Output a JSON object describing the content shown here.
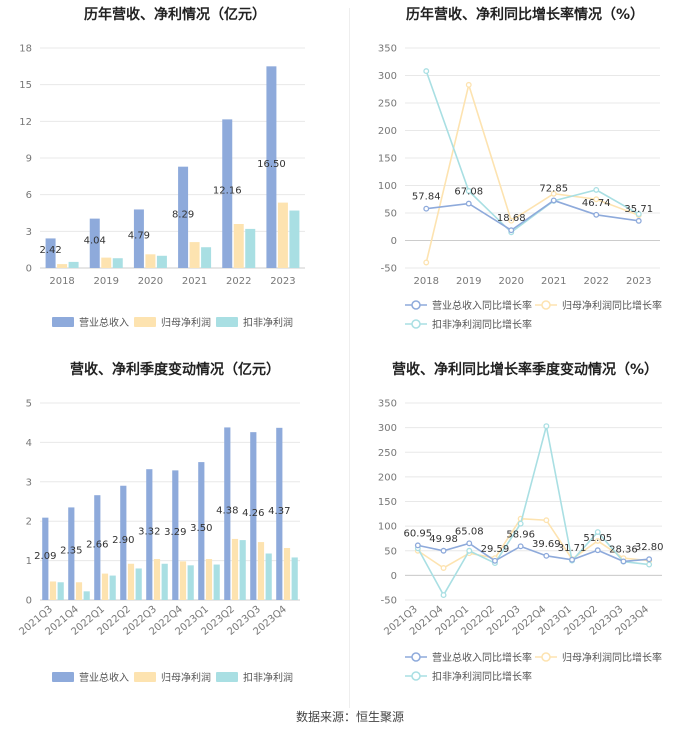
{
  "footer": {
    "source": "数据来源：恒生聚源"
  },
  "colors": {
    "revenue": "#8eaadb",
    "net_profit": "#fde3b0",
    "deducted": "#a9dfe3",
    "grid": "#e8e8e8",
    "axis": "#cccccc"
  },
  "chart_data": [
    {
      "id": "annual-values",
      "type": "bar",
      "title": "历年营收、净利情况（亿元）",
      "categories": [
        "2018",
        "2019",
        "2020",
        "2021",
        "2022",
        "2023"
      ],
      "series": [
        {
          "name": "营业总收入",
          "values": [
            2.42,
            4.04,
            4.79,
            8.29,
            12.16,
            16.5
          ],
          "labels": [
            "2.42",
            "4.04",
            "4.79",
            "8.29",
            "12.16",
            "16.50"
          ]
        },
        {
          "name": "归母净利润",
          "values": [
            0.32,
            0.85,
            1.12,
            2.12,
            3.6,
            5.35
          ]
        },
        {
          "name": "扣非净利润",
          "values": [
            0.5,
            0.8,
            1.0,
            1.7,
            3.2,
            4.7
          ]
        }
      ],
      "ylim": [
        0,
        18
      ],
      "yticks": [
        0,
        3,
        6,
        9,
        12,
        15,
        18
      ],
      "ytick_labels": [
        "0",
        "3",
        "6",
        "9",
        "12",
        "15",
        "18"
      ]
    },
    {
      "id": "annual-growth",
      "type": "line",
      "title": "历年营收、净利同比增长率情况（%）",
      "categories": [
        "2018",
        "2019",
        "2020",
        "2021",
        "2022",
        "2023"
      ],
      "series": [
        {
          "name": "营业总收入同比增长率",
          "values": [
            57.84,
            67.08,
            18.68,
            72.85,
            46.74,
            35.71
          ],
          "labels": [
            "57.84",
            "67.08",
            "18.68",
            "72.85",
            "46.74",
            "35.71"
          ]
        },
        {
          "name": "归母净利润同比增长率",
          "values": [
            -40,
            283,
            36,
            85,
            75,
            46
          ]
        },
        {
          "name": "扣非净利润同比增长率",
          "values": [
            308,
            90,
            15,
            72,
            92,
            48
          ]
        }
      ],
      "ylim": [
        -50,
        350
      ],
      "yticks": [
        -50,
        0,
        50,
        100,
        150,
        200,
        250,
        300,
        350
      ],
      "ytick_labels": [
        "-50",
        "0",
        "50",
        "100",
        "150",
        "200",
        "250",
        "300",
        "350"
      ]
    },
    {
      "id": "quarterly-values",
      "type": "bar",
      "title": "营收、净利季度变动情况（亿元）",
      "categories": [
        "2021Q3",
        "2021Q4",
        "2022Q1",
        "2022Q2",
        "2022Q3",
        "2022Q4",
        "2023Q1",
        "2023Q2",
        "2023Q3",
        "2023Q4"
      ],
      "series": [
        {
          "name": "营业总收入",
          "values": [
            2.09,
            2.35,
            2.66,
            2.9,
            3.32,
            3.29,
            3.5,
            4.38,
            4.26,
            4.37
          ],
          "labels": [
            "2.09",
            "2.35",
            "2.66",
            "2.90",
            "3.32",
            "3.29",
            "3.50",
            "4.38",
            "4.26",
            "4.37"
          ]
        },
        {
          "name": "归母净利润",
          "values": [
            0.47,
            0.45,
            0.67,
            0.92,
            1.04,
            0.98,
            1.04,
            1.55,
            1.47,
            1.32
          ]
        },
        {
          "name": "扣非净利润",
          "values": [
            0.45,
            0.22,
            0.62,
            0.8,
            0.92,
            0.88,
            0.9,
            1.52,
            1.18,
            1.08
          ]
        }
      ],
      "ylim": [
        0,
        5
      ],
      "yticks": [
        0,
        1,
        2,
        3,
        4,
        5
      ],
      "ytick_labels": [
        "0",
        "1",
        "2",
        "3",
        "4",
        "5"
      ]
    },
    {
      "id": "quarterly-growth",
      "type": "line",
      "title": "营收、净利同比增长率季度变动情况（%）",
      "categories": [
        "2021Q3",
        "2021Q4",
        "2022Q1",
        "2022Q2",
        "2022Q3",
        "2022Q4",
        "2023Q1",
        "2023Q2",
        "2023Q3",
        "2023Q4"
      ],
      "series": [
        {
          "name": "营业总收入同比增长率",
          "values": [
            60.95,
            49.98,
            65.08,
            29.59,
            58.96,
            39.69,
            31.71,
            51.05,
            28.36,
            32.8
          ],
          "labels": [
            "60.95",
            "49.98",
            "65.08",
            "29.59",
            "58.96",
            "39.69",
            "31.71",
            "51.05",
            "28.36",
            "32.80"
          ]
        },
        {
          "name": "归母净利润同比增长率",
          "values": [
            50,
            15,
            45,
            35,
            115,
            112,
            33,
            70,
            35,
            30
          ]
        },
        {
          "name": "扣非净利润同比增长率",
          "values": [
            55,
            -40,
            50,
            25,
            105,
            303,
            30,
            88,
            28,
            22
          ]
        }
      ],
      "ylim": [
        -50,
        350
      ],
      "yticks": [
        -50,
        0,
        50,
        100,
        150,
        200,
        250,
        300,
        350
      ],
      "ytick_labels": [
        "-50",
        "0",
        "50",
        "100",
        "150",
        "200",
        "250",
        "300",
        "350"
      ]
    }
  ]
}
